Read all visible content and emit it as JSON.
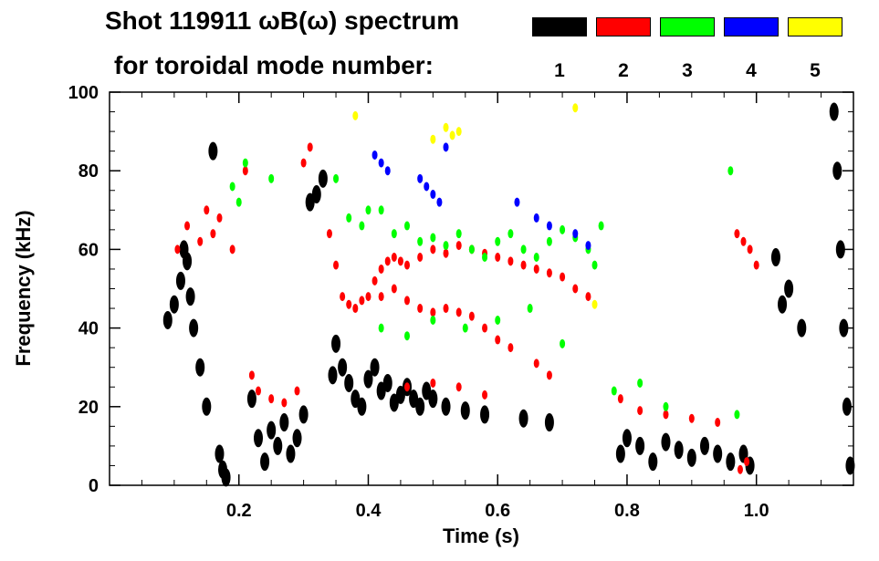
{
  "header": {
    "line1": "Shot 119911 ωB(ω) spectrum",
    "line2": "for toroidal mode number:"
  },
  "legend": [
    {
      "label": "1",
      "color": "#000000"
    },
    {
      "label": "2",
      "color": "#ff0000"
    },
    {
      "label": "3",
      "color": "#00ff00"
    },
    {
      "label": "4",
      "color": "#0000ff"
    },
    {
      "label": "5",
      "color": "#ffff00"
    }
  ],
  "chart_data": {
    "type": "scatter",
    "title": "Shot 119911 ωB(ω) spectrum for toroidal mode number:",
    "xlabel": "Time (s)",
    "ylabel": "Frequency (kHz)",
    "xlim": [
      0.0,
      1.15
    ],
    "ylim": [
      0,
      100
    ],
    "xticks": [
      0.2,
      0.4,
      0.6,
      0.8,
      1.0
    ],
    "xtick_labels": [
      "0.2",
      "0.4",
      "0.6",
      "0.8",
      "1.0"
    ],
    "yticks": [
      0,
      20,
      40,
      60,
      80,
      100
    ],
    "ytick_labels": [
      "0",
      "20",
      "40",
      "60",
      "80",
      "100"
    ],
    "series": [
      {
        "name": "1",
        "color": "#000000",
        "points": [
          [
            0.09,
            42
          ],
          [
            0.1,
            46
          ],
          [
            0.11,
            52
          ],
          [
            0.115,
            60
          ],
          [
            0.12,
            57
          ],
          [
            0.125,
            48
          ],
          [
            0.13,
            40
          ],
          [
            0.14,
            30
          ],
          [
            0.15,
            20
          ],
          [
            0.16,
            85
          ],
          [
            0.17,
            8
          ],
          [
            0.175,
            4
          ],
          [
            0.18,
            2
          ],
          [
            0.22,
            22
          ],
          [
            0.23,
            12
          ],
          [
            0.24,
            6
          ],
          [
            0.25,
            14
          ],
          [
            0.26,
            10
          ],
          [
            0.27,
            16
          ],
          [
            0.28,
            8
          ],
          [
            0.29,
            12
          ],
          [
            0.3,
            18
          ],
          [
            0.31,
            72
          ],
          [
            0.32,
            74
          ],
          [
            0.33,
            78
          ],
          [
            0.345,
            28
          ],
          [
            0.35,
            36
          ],
          [
            0.36,
            30
          ],
          [
            0.37,
            26
          ],
          [
            0.38,
            22
          ],
          [
            0.39,
            20
          ],
          [
            0.4,
            27
          ],
          [
            0.41,
            30
          ],
          [
            0.42,
            24
          ],
          [
            0.43,
            26
          ],
          [
            0.44,
            21
          ],
          [
            0.45,
            23
          ],
          [
            0.46,
            25
          ],
          [
            0.47,
            22
          ],
          [
            0.48,
            20
          ],
          [
            0.49,
            24
          ],
          [
            0.5,
            22
          ],
          [
            0.52,
            20
          ],
          [
            0.55,
            19
          ],
          [
            0.58,
            18
          ],
          [
            0.64,
            17
          ],
          [
            0.68,
            16
          ],
          [
            0.79,
            8
          ],
          [
            0.8,
            12
          ],
          [
            0.82,
            10
          ],
          [
            0.84,
            6
          ],
          [
            0.86,
            11
          ],
          [
            0.88,
            9
          ],
          [
            0.9,
            7
          ],
          [
            0.92,
            10
          ],
          [
            0.94,
            8
          ],
          [
            0.96,
            6
          ],
          [
            0.98,
            8
          ],
          [
            0.99,
            5
          ],
          [
            1.03,
            58
          ],
          [
            1.04,
            46
          ],
          [
            1.05,
            50
          ],
          [
            1.07,
            40
          ],
          [
            1.12,
            95
          ],
          [
            1.125,
            80
          ],
          [
            1.13,
            60
          ],
          [
            1.135,
            40
          ],
          [
            1.14,
            20
          ],
          [
            1.145,
            5
          ]
        ]
      },
      {
        "name": "2",
        "color": "#ff0000",
        "points": [
          [
            0.105,
            60
          ],
          [
            0.12,
            66
          ],
          [
            0.14,
            62
          ],
          [
            0.15,
            70
          ],
          [
            0.16,
            64
          ],
          [
            0.17,
            68
          ],
          [
            0.19,
            60
          ],
          [
            0.21,
            80
          ],
          [
            0.22,
            28
          ],
          [
            0.23,
            24
          ],
          [
            0.25,
            22
          ],
          [
            0.27,
            21
          ],
          [
            0.29,
            24
          ],
          [
            0.3,
            82
          ],
          [
            0.31,
            86
          ],
          [
            0.34,
            64
          ],
          [
            0.35,
            56
          ],
          [
            0.36,
            48
          ],
          [
            0.37,
            46
          ],
          [
            0.38,
            45
          ],
          [
            0.39,
            47
          ],
          [
            0.4,
            48
          ],
          [
            0.41,
            52
          ],
          [
            0.42,
            55
          ],
          [
            0.43,
            57
          ],
          [
            0.44,
            58
          ],
          [
            0.45,
            57
          ],
          [
            0.46,
            56
          ],
          [
            0.48,
            58
          ],
          [
            0.5,
            60
          ],
          [
            0.52,
            59
          ],
          [
            0.54,
            61
          ],
          [
            0.56,
            60
          ],
          [
            0.58,
            59
          ],
          [
            0.6,
            58
          ],
          [
            0.62,
            57
          ],
          [
            0.64,
            56
          ],
          [
            0.66,
            55
          ],
          [
            0.68,
            54
          ],
          [
            0.7,
            53
          ],
          [
            0.72,
            50
          ],
          [
            0.74,
            48
          ],
          [
            0.42,
            48
          ],
          [
            0.44,
            50
          ],
          [
            0.46,
            47
          ],
          [
            0.48,
            45
          ],
          [
            0.5,
            44
          ],
          [
            0.52,
            45
          ],
          [
            0.54,
            44
          ],
          [
            0.56,
            43
          ],
          [
            0.58,
            40
          ],
          [
            0.6,
            37
          ],
          [
            0.62,
            35
          ],
          [
            0.66,
            31
          ],
          [
            0.68,
            28
          ],
          [
            0.46,
            25
          ],
          [
            0.5,
            26
          ],
          [
            0.54,
            25
          ],
          [
            0.58,
            23
          ],
          [
            0.79,
            22
          ],
          [
            0.82,
            19
          ],
          [
            0.86,
            18
          ],
          [
            0.9,
            17
          ],
          [
            0.94,
            16
          ],
          [
            0.97,
            64
          ],
          [
            0.98,
            62
          ],
          [
            0.99,
            60
          ],
          [
            1.0,
            56
          ],
          [
            0.975,
            4
          ],
          [
            0.985,
            6
          ]
        ]
      },
      {
        "name": "3",
        "color": "#00ff00",
        "points": [
          [
            0.19,
            76
          ],
          [
            0.2,
            72
          ],
          [
            0.21,
            82
          ],
          [
            0.25,
            78
          ],
          [
            0.35,
            78
          ],
          [
            0.37,
            68
          ],
          [
            0.39,
            66
          ],
          [
            0.4,
            70
          ],
          [
            0.42,
            70
          ],
          [
            0.44,
            64
          ],
          [
            0.46,
            66
          ],
          [
            0.48,
            62
          ],
          [
            0.5,
            63
          ],
          [
            0.52,
            61
          ],
          [
            0.54,
            64
          ],
          [
            0.56,
            60
          ],
          [
            0.58,
            58
          ],
          [
            0.6,
            62
          ],
          [
            0.62,
            64
          ],
          [
            0.64,
            60
          ],
          [
            0.66,
            58
          ],
          [
            0.68,
            62
          ],
          [
            0.7,
            65
          ],
          [
            0.72,
            63
          ],
          [
            0.74,
            60
          ],
          [
            0.75,
            56
          ],
          [
            0.76,
            66
          ],
          [
            0.42,
            40
          ],
          [
            0.46,
            38
          ],
          [
            0.5,
            42
          ],
          [
            0.55,
            40
          ],
          [
            0.6,
            42
          ],
          [
            0.65,
            45
          ],
          [
            0.7,
            36
          ],
          [
            0.78,
            24
          ],
          [
            0.82,
            26
          ],
          [
            0.86,
            20
          ],
          [
            0.96,
            80
          ],
          [
            0.97,
            18
          ]
        ]
      },
      {
        "name": "4",
        "color": "#0000ff",
        "points": [
          [
            0.41,
            84
          ],
          [
            0.42,
            82
          ],
          [
            0.43,
            80
          ],
          [
            0.48,
            78
          ],
          [
            0.49,
            76
          ],
          [
            0.5,
            74
          ],
          [
            0.51,
            72
          ],
          [
            0.52,
            86
          ],
          [
            0.63,
            72
          ],
          [
            0.66,
            68
          ],
          [
            0.68,
            66
          ],
          [
            0.72,
            64
          ],
          [
            0.74,
            61
          ]
        ]
      },
      {
        "name": "5",
        "color": "#ffff00",
        "points": [
          [
            0.38,
            94
          ],
          [
            0.5,
            88
          ],
          [
            0.52,
            91
          ],
          [
            0.53,
            89
          ],
          [
            0.54,
            90
          ],
          [
            0.72,
            96
          ],
          [
            0.75,
            46
          ]
        ]
      }
    ]
  }
}
